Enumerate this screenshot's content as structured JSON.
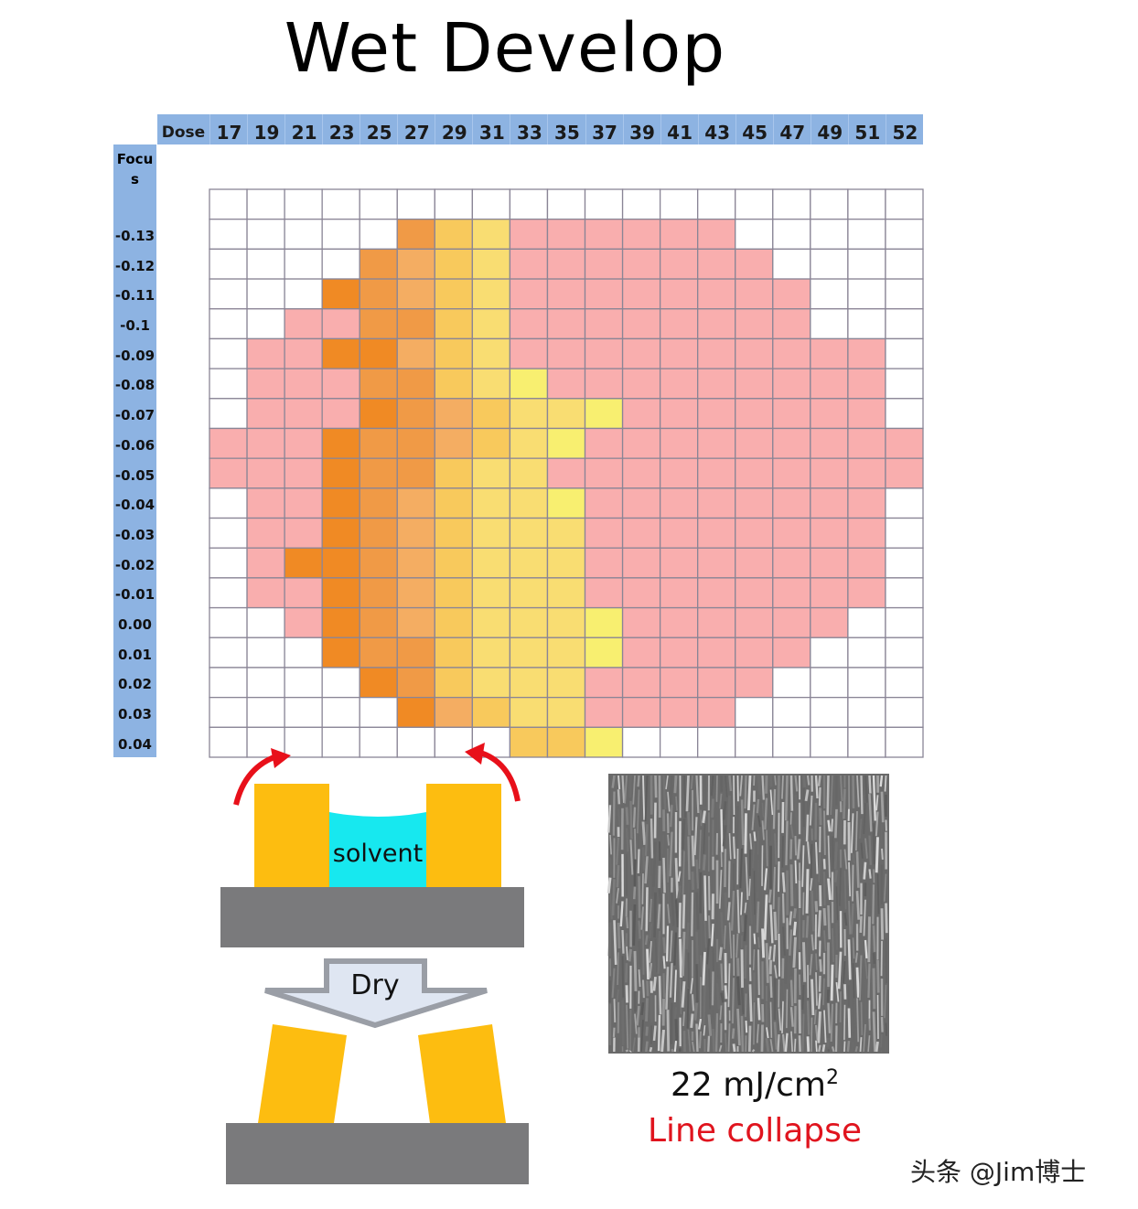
{
  "title": "Wet Develop",
  "chart_data": {
    "type": "heatmap",
    "title": "Wet Develop",
    "x_header": "Dose",
    "y_header": "Focus",
    "y_header_display": [
      "Focu",
      "s"
    ],
    "x_categories": [
      "17",
      "19",
      "21",
      "23",
      "25",
      "27",
      "29",
      "31",
      "33",
      "35",
      "37",
      "39",
      "41",
      "43",
      "45",
      "47",
      "49",
      "51",
      "52"
    ],
    "y_categories": [
      "",
      "-0.13",
      "-0.12",
      "-0.11",
      "-0.1",
      "-0.09",
      "-0.08",
      "-0.07",
      "-0.06",
      "-0.05",
      "-0.04",
      "-0.03",
      "-0.02",
      "-0.01",
      "0.00",
      "0.01",
      "0.02",
      "0.03",
      "0.04"
    ],
    "legend_codes": {
      "W": "#ffffff",
      "P": "#f9aeae",
      "O": "#f08a24",
      "M": "#f09a46",
      "A": "#f4ad62",
      "L": "#f8c95c",
      "Y": "#f9dd72",
      "B": "#f8ef70"
    },
    "cells": [
      "WWWWWWWWWWWWWWWWWWW",
      "WWWWWMLYPPPPPPWWWWW",
      "WWWWMALYPPPPPPPWWWW",
      "WWWOMALYPPPPPPPPWWW",
      "WWPPMMLYPPPPPPPPWWW",
      "WPPOOALYPPPPPPPPPPW",
      "WPPPMMLYBPPPPPPPPPW",
      "WPPPOMALYYBPPPPPPPW",
      "PPPOMMALYBPPPPPPPPP",
      "PPPOMMLYYPPPPPPPPPP",
      "WPPOMALYYBPPPPPPPPW",
      "WPPOMALYYYPPPPPPPPW",
      "WPOOMALYYYPPPPPPPPW",
      "WPPOMALYYYPPPPPPPPW",
      "WWPOMALYYYBPPPPPPWW",
      "WWWOMMLYYYBPPPPPWWW",
      "WWWWOMLYYYPPPPPWWWW",
      "WWWWWOALYYPPPPWWWWW",
      "WWWWWWWWLLBWWWWWWWW"
    ]
  },
  "diagram": {
    "solvent_label": "solvent",
    "dry_label": "Dry",
    "colors": {
      "line": "#fdbd10",
      "solvent": "#17e8ef",
      "substrate": "#7a7a7c",
      "arrow": "#e8101a"
    }
  },
  "sem": {
    "dose_value": "22 mJ/cm",
    "dose_superscript": "2",
    "caption": "Line collapse"
  },
  "watermark": "头条 @Jim博士"
}
